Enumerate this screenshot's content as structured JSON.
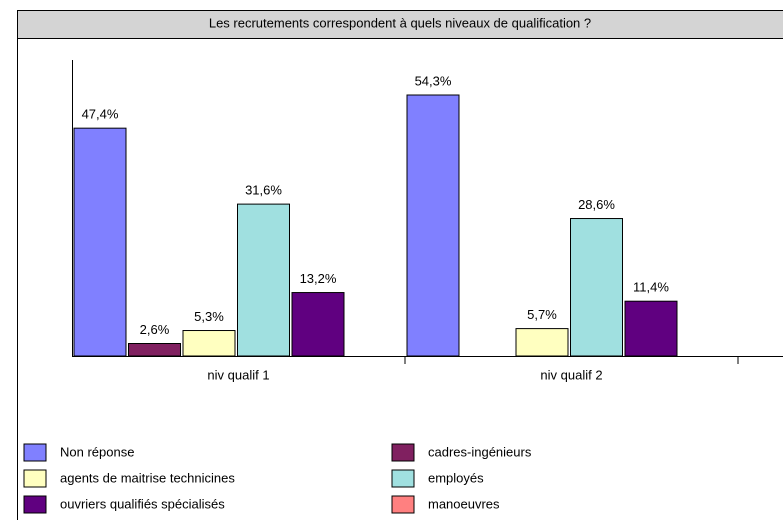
{
  "chart_data": {
    "type": "bar",
    "title": "Les recrutements correspondent à quels niveaux de qualification ?",
    "categories": [
      "niv qualif 1",
      "niv qualif 2"
    ],
    "series": [
      {
        "name": "Non réponse",
        "color": "#8080ff",
        "values": [
          47.4,
          54.3
        ],
        "value_labels": [
          "47,4%",
          "54,3%"
        ]
      },
      {
        "name": "cadres-ingénieurs",
        "color": "#802060",
        "values": [
          2.6,
          null
        ],
        "value_labels": [
          "2,6%",
          null
        ]
      },
      {
        "name": "agents de maitrise technicines",
        "color": "#ffffc0",
        "values": [
          5.3,
          5.7
        ],
        "value_labels": [
          "5,3%",
          "5,7%"
        ]
      },
      {
        "name": "employés",
        "color": "#a0e0e0",
        "values": [
          31.6,
          28.6
        ],
        "value_labels": [
          "31,6%",
          "28,6%"
        ]
      },
      {
        "name": "ouvriers qualifiés spécialisés",
        "color": "#600080",
        "values": [
          13.2,
          11.4
        ],
        "value_labels": [
          "13,2%",
          "11,4%"
        ]
      },
      {
        "name": "manoeuvres",
        "color": "#ff8080",
        "values": [
          null,
          null
        ],
        "value_labels": [
          null,
          null
        ]
      }
    ]
  }
}
